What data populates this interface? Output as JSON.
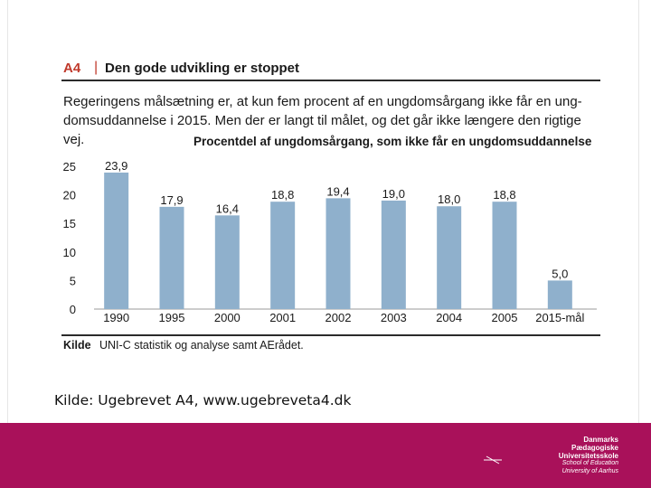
{
  "figure": {
    "id": "A4",
    "separator": "|",
    "title": "Den gode udvikling er stoppet",
    "description": "Regeringens målsætning er, at kun fem procent af en ungdomsårgang ikke får en ung- domsuddannelse i 2015. Men der er langt til målet, og det går ikke længere den rigtige vej.",
    "subtitle": "Procentdel af ungdomsårgang, som ikke får en ungdomsuddannelse",
    "source_label": "Kilde",
    "source_text": "UNI-C statistik og analyse samt AErådet."
  },
  "caption": "Kilde: Ugebrevet A4, www.ugebreveta4.dk",
  "footer": {
    "logo_name_lines": [
      "Danmarks",
      "Pædagogiske",
      "Universitetsskole"
    ],
    "logo_sub_lines": [
      "School of Education",
      "University of Aarhus"
    ]
  },
  "colors": {
    "bar": "#8fb0cc",
    "footer": "#a9115a",
    "accent": "#c0392b"
  },
  "chart_data": {
    "type": "bar",
    "title": "Den gode udvikling er stoppet",
    "subtitle": "Procentdel af ungdomsårgang, som ikke får en ungdomsuddannelse",
    "categories": [
      "1990",
      "1995",
      "2000",
      "2001",
      "2002",
      "2003",
      "2004",
      "2005",
      "2015-mål"
    ],
    "values": [
      23.9,
      17.9,
      16.4,
      18.8,
      19.4,
      19.0,
      18.0,
      18.8,
      5.0
    ],
    "value_labels": [
      "23,9",
      "17,9",
      "16,4",
      "18,8",
      "19,4",
      "19,0",
      "18,0",
      "18,8",
      "5,0"
    ],
    "yticks": [
      "0",
      "5",
      "10",
      "15",
      "20",
      "25"
    ],
    "xlabel": "",
    "ylabel": "",
    "ylim": [
      0,
      25
    ],
    "grid": false,
    "legend": "none"
  }
}
